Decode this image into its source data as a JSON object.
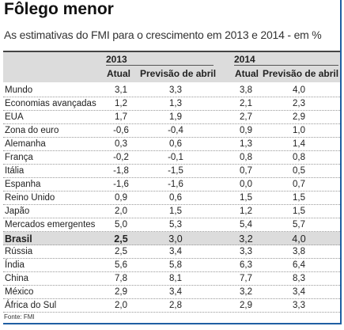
{
  "header": {
    "title": "Fôlego menor",
    "subtitle": "As estimativas do FMI para o crescimento em 2013 e 2014 - em %"
  },
  "table": {
    "years": [
      "2013",
      "2014"
    ],
    "subheaders": [
      "Atual",
      "Previsão de abril",
      "Atual",
      "Previsão de abril"
    ],
    "rows": [
      [
        "Mundo",
        "3,1",
        "3,3",
        "3,8",
        "4,0"
      ],
      [
        "Economias avançadas",
        "1,2",
        "1,3",
        "2,1",
        "2,3"
      ],
      [
        "EUA",
        "1,7",
        "1,9",
        "2,7",
        "2,9"
      ],
      [
        "Zona do euro",
        "-0,6",
        "-0,4",
        "0,9",
        "1,0"
      ],
      [
        "Alemanha",
        "0,3",
        "0,6",
        "1,3",
        "1,4"
      ],
      [
        "França",
        "-0,2",
        "-0,1",
        "0,8",
        "0,8"
      ],
      [
        "Itália",
        "-1,8",
        "-1,5",
        "0,7",
        "0,5"
      ],
      [
        "Espanha",
        "-1,6",
        "-1,6",
        "0,0",
        "0,7"
      ],
      [
        "Reino Unido",
        "0,9",
        "0,6",
        "1,5",
        "1,5"
      ],
      [
        "Japão",
        "2,0",
        "1,5",
        "1,2",
        "1,5"
      ],
      [
        "Mercados emergentes",
        "5,0",
        "5,3",
        "5,4",
        "5,7"
      ],
      [
        "Brasil",
        "2,5",
        "3,0",
        "3,2",
        "4,0"
      ],
      [
        "Rússia",
        "2,5",
        "3,4",
        "3,3",
        "3,8"
      ],
      [
        "Índia",
        "5,6",
        "5,8",
        "6,3",
        "6,4"
      ],
      [
        "China",
        "7,8",
        "8,1",
        "7,7",
        "8,3"
      ],
      [
        "México",
        "2,9",
        "3,4",
        "3,2",
        "3,4"
      ],
      [
        "África do Sul",
        "2,0",
        "2,8",
        "2,9",
        "3,3"
      ]
    ]
  },
  "footer": {
    "source": "Fonte: FMI"
  }
}
